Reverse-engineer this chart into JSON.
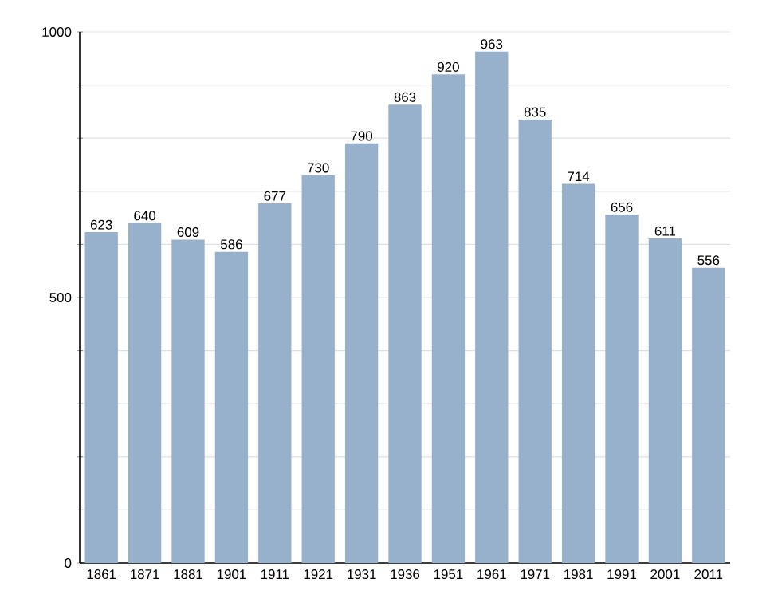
{
  "chart_data": {
    "type": "bar",
    "categories": [
      "1861",
      "1871",
      "1881",
      "1901",
      "1911",
      "1921",
      "1931",
      "1936",
      "1951",
      "1961",
      "1971",
      "1981",
      "1991",
      "2001",
      "2011"
    ],
    "values": [
      623,
      640,
      609,
      586,
      677,
      730,
      790,
      863,
      920,
      963,
      835,
      714,
      656,
      611,
      556
    ],
    "color": "#97b0cc",
    "ylim": [
      0,
      1000
    ],
    "yticks": [
      0,
      {
        "value": 100,
        "label": null
      },
      {
        "value": 200,
        "label": null
      },
      {
        "value": 300,
        "label": null
      },
      {
        "value": 400,
        "label": null
      },
      500,
      {
        "value": 600,
        "label": null
      },
      {
        "value": 700,
        "label": null
      },
      {
        "value": 800,
        "label": null
      },
      {
        "value": 900,
        "label": null
      },
      1000
    ],
    "grid": "y",
    "data_labels": true
  }
}
